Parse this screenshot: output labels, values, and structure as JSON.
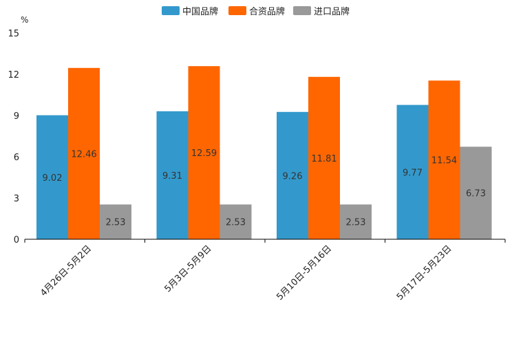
{
  "chart_data": {
    "type": "bar",
    "unit": "%",
    "ylim": [
      0,
      15
    ],
    "yticks": [
      0,
      3,
      6,
      9,
      12,
      15
    ],
    "legend_position": "top-center",
    "categories": [
      "4月26日-5月2日",
      "5月3日-5月9日",
      "5月10日-5月16日",
      "5月17日-5月23日"
    ],
    "series": [
      {
        "name": "中国品牌",
        "color": "#3399cc",
        "values": [
          9.02,
          9.31,
          9.26,
          9.77
        ]
      },
      {
        "name": "合资品牌",
        "color": "#ff6600",
        "values": [
          12.46,
          12.59,
          11.81,
          11.54
        ]
      },
      {
        "name": "进口品牌",
        "color": "#999999",
        "values": [
          2.53,
          2.53,
          2.53,
          6.73
        ]
      }
    ]
  }
}
